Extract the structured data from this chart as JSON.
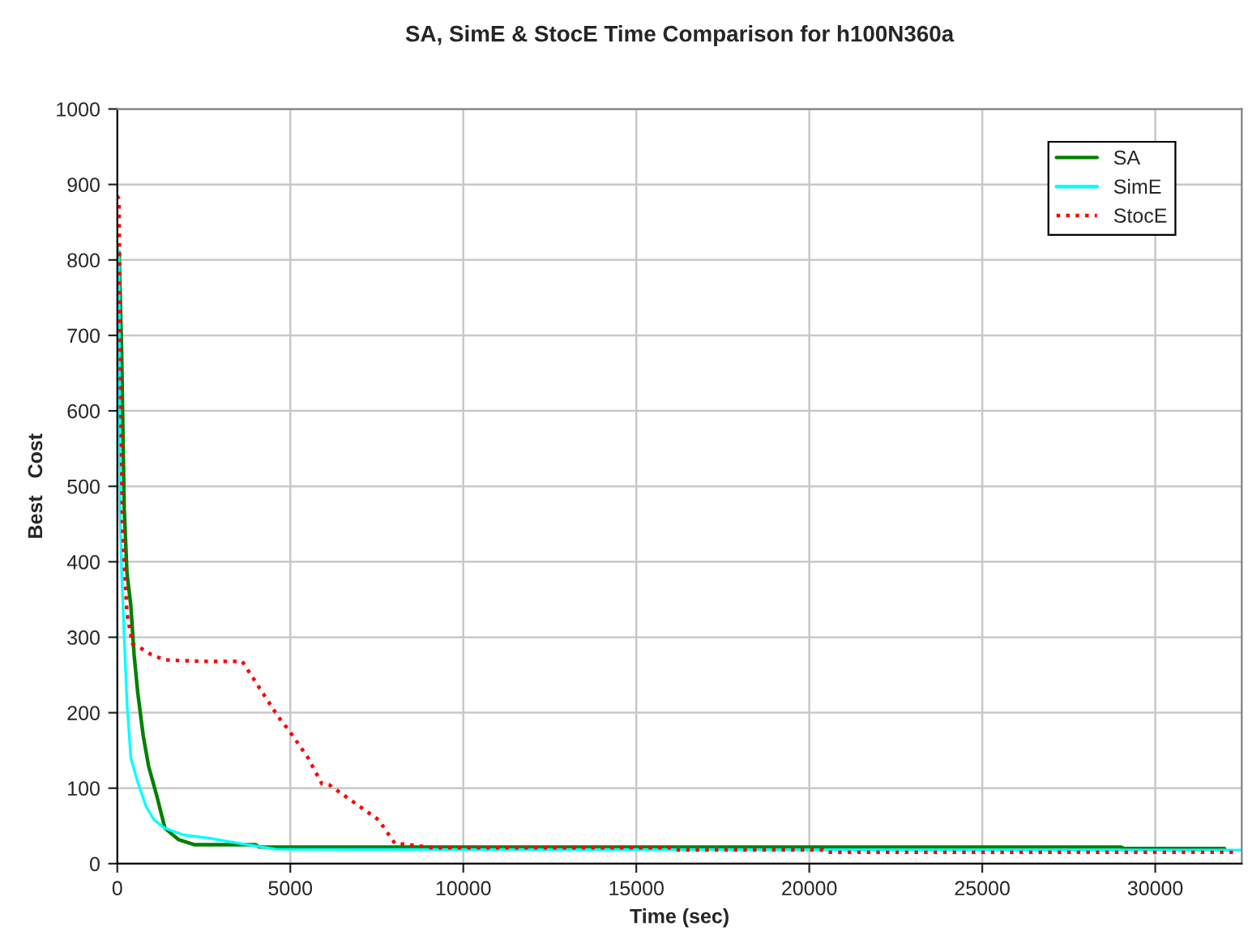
{
  "chart_data": {
    "type": "line",
    "title": "SA, SimE & StocE Time Comparison for h100N360a",
    "xlabel": "Time (sec)",
    "ylabel": "Best   Cost",
    "xlim": [
      0,
      32500
    ],
    "xticks": [
      0,
      5000,
      10000,
      15000,
      20000,
      25000,
      30000
    ],
    "ylim": [
      0,
      1000
    ],
    "yticks": [
      0,
      100,
      200,
      300,
      400,
      500,
      600,
      700,
      800,
      900,
      1000
    ],
    "grid": true,
    "legend": "top right",
    "marker": "none",
    "series": [
      {
        "name": "SA",
        "color": "#008000",
        "line_style": "solid",
        "x": [
          0,
          50,
          125,
          170,
          200,
          280,
          390,
          485,
          590,
          750,
          905,
          1140,
          1375,
          1765,
          2235,
          4000,
          4100,
          29000,
          29100,
          32000
        ],
        "values": [
          810,
          810,
          680,
          550,
          470,
          385,
          342,
          277,
          227,
          169,
          129,
          90,
          47,
          32,
          25,
          25,
          22,
          22,
          20,
          20
        ]
      },
      {
        "name": "SimE",
        "color": "#00ffff",
        "line_style": "solid",
        "x": [
          0,
          50,
          80,
          125,
          200,
          280,
          390,
          590,
          830,
          1060,
          1375,
          1920,
          2625,
          3250,
          4580,
          32500
        ],
        "values": [
          820,
          800,
          470,
          385,
          300,
          212,
          140,
          108,
          76,
          58,
          47,
          38,
          34,
          29,
          19,
          18
        ]
      },
      {
        "name": "StocE",
        "color": "#ff0000",
        "line_style": "dotted",
        "x": [
          0,
          50,
          100,
          150,
          200,
          280,
          440,
          590,
          980,
          1375,
          2470,
          3610,
          4660,
          4970,
          5515,
          5910,
          6140,
          7550,
          8020,
          8640,
          9110,
          16000,
          16100,
          20400,
          20500,
          32400
        ],
        "values": [
          885,
          880,
          600,
          450,
          400,
          331,
          291,
          288,
          277,
          270,
          268,
          268,
          194,
          176,
          140,
          106,
          104,
          58,
          27,
          24,
          21,
          21,
          18,
          18,
          15,
          15
        ]
      }
    ]
  }
}
